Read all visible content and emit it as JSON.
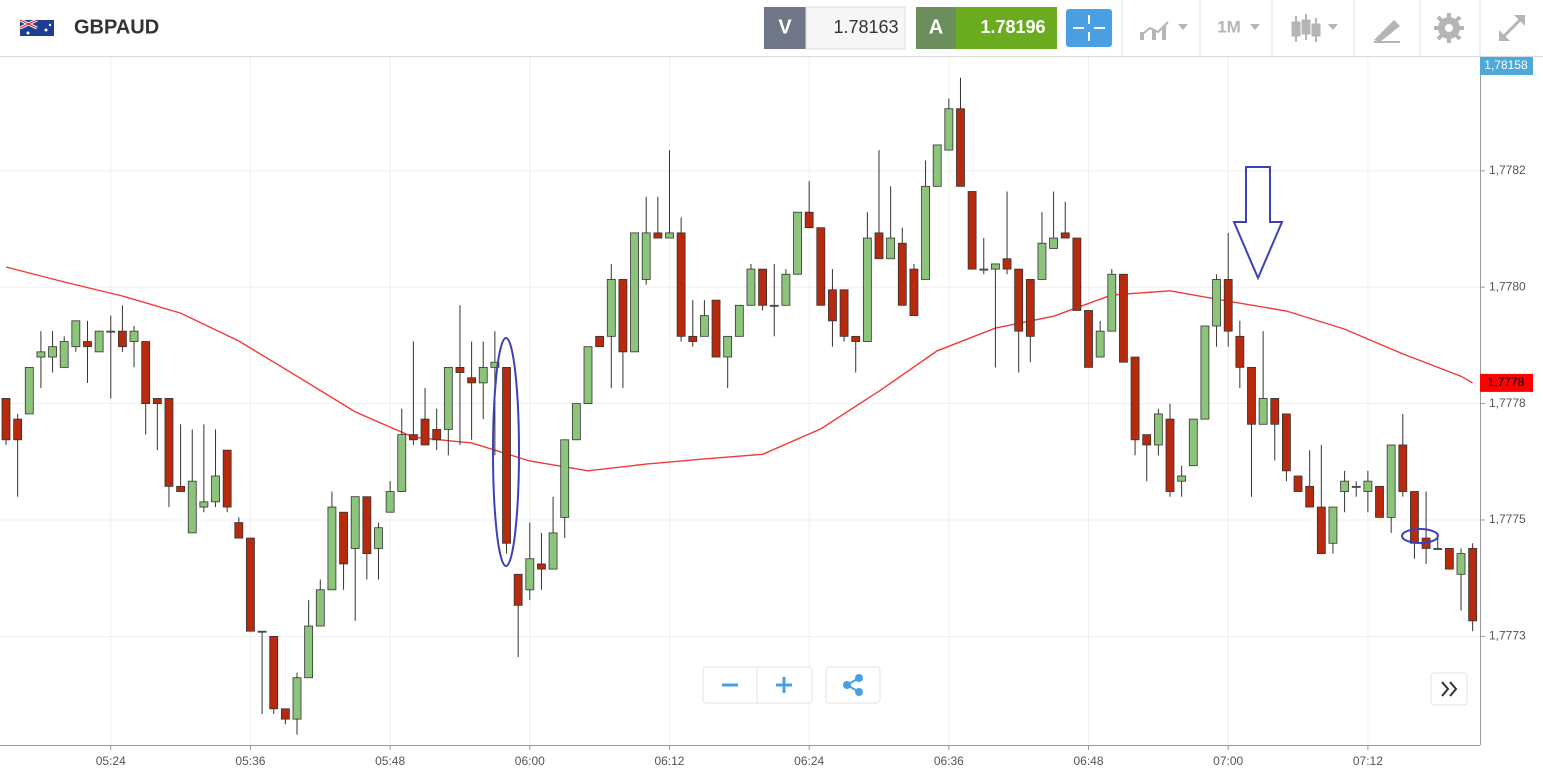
{
  "header": {
    "symbol": "GBPAUD",
    "sell_label": "V",
    "sell_price": "1.78163",
    "buy_label": "A",
    "buy_price": "1.78196",
    "timeframe": "1M"
  },
  "chart_data": {
    "type": "candlestick",
    "categories": [
      null,
      null,
      null,
      null,
      null,
      null,
      null,
      null,
      null,
      "05:24",
      null,
      null,
      null,
      null,
      null,
      null,
      null,
      null,
      null,
      null,
      null,
      "05:36",
      null,
      null,
      null,
      null,
      null,
      null,
      null,
      null,
      null,
      null,
      null,
      "05:48",
      null,
      null,
      null,
      null,
      null,
      null,
      null,
      null,
      null,
      null,
      null,
      "06:00",
      null,
      null,
      null,
      null,
      null,
      null,
      null,
      null,
      null,
      null,
      null,
      "06:12",
      null,
      null,
      null,
      null,
      null,
      null,
      null,
      null,
      null,
      null,
      null,
      "06:24",
      null,
      null,
      null,
      null,
      null,
      null,
      null,
      null,
      null,
      null,
      null,
      "06:36",
      null,
      null,
      null,
      null,
      null,
      null,
      null,
      null,
      null,
      null,
      null,
      "06:48",
      null,
      null,
      null,
      null,
      null,
      null,
      null,
      null,
      null,
      null,
      null,
      "07:00",
      null,
      null,
      null,
      null,
      null,
      null,
      null,
      null,
      null,
      null,
      null,
      "07:12",
      null,
      null,
      null,
      null,
      null,
      null,
      null,
      null,
      null
    ],
    "open": [
      1.77776,
      1.77772,
      1.77773,
      1.77784,
      1.77784,
      1.77782,
      1.77786,
      1.77787,
      1.77785,
      1.77789,
      1.77789,
      1.77787,
      1.77787,
      1.77776,
      1.77776,
      1.77759,
      1.7775,
      1.77755,
      1.77756,
      1.77766,
      1.77752,
      1.77749,
      1.77731,
      1.7773,
      1.77716,
      1.77714,
      1.77722,
      1.77732,
      1.77739,
      1.77754,
      1.77747,
      1.77757,
      1.77747,
      1.77754,
      1.77758,
      1.77769,
      1.77772,
      1.7777,
      1.7777,
      1.77782,
      1.7778,
      1.77779,
      1.77782,
      1.77782,
      1.77742,
      1.77739,
      1.77744,
      1.77743,
      1.77753,
      1.77768,
      1.77775,
      1.77788,
      1.77788,
      1.77799,
      1.77785,
      1.77799,
      1.77808,
      1.77807,
      1.77808,
      1.77788,
      1.77788,
      1.77795,
      1.77784,
      1.77788,
      1.77794,
      1.77801,
      1.77794,
      1.77794,
      1.778,
      1.77812,
      1.77809,
      1.77797,
      1.77797,
      1.77788,
      1.77787,
      1.77808,
      1.77803,
      1.77806,
      1.77801,
      1.77799,
      1.77817,
      1.77824,
      1.77832,
      1.77816,
      1.77801,
      1.77801,
      1.77803,
      1.77801,
      1.77799,
      1.77799,
      1.77805,
      1.77808,
      1.77807,
      1.77793,
      1.77784,
      1.77789,
      1.778,
      1.77784,
      1.77769,
      1.77767,
      1.77772,
      1.7776,
      1.77763,
      1.77772,
      1.7779,
      1.77799,
      1.77788,
      1.77782,
      1.77771,
      1.77776,
      1.77773,
      1.77761,
      1.77759,
      1.77755,
      1.77748,
      1.77758,
      1.77759,
      1.77758,
      1.77759,
      1.77753,
      1.77767,
      1.77758,
      1.77749,
      1.77747,
      1.77747,
      1.77742,
      1.77747
    ],
    "high": [
      1.77776,
      1.77773,
      1.77782,
      1.77789,
      1.77789,
      1.77788,
      1.77791,
      1.77791,
      1.77789,
      1.77792,
      1.77794,
      1.7779,
      1.77787,
      1.77776,
      1.77776,
      1.77771,
      1.7777,
      1.77771,
      1.7777,
      1.77766,
      1.77753,
      1.77749,
      1.77731,
      1.7773,
      1.77716,
      1.77723,
      1.77737,
      1.77741,
      1.77758,
      1.77754,
      1.77757,
      1.77757,
      1.77752,
      1.7776,
      1.77774,
      1.77787,
      1.77778,
      1.77774,
      1.77782,
      1.77794,
      1.77787,
      1.77787,
      1.77789,
      1.77782,
      1.77742,
      1.77752,
      1.7775,
      1.77757,
      1.77768,
      1.77775,
      1.77786,
      1.77788,
      1.77802,
      1.77799,
      1.77808,
      1.77815,
      1.77815,
      1.77824,
      1.77811,
      1.77795,
      1.77795,
      1.77795,
      1.77788,
      1.77794,
      1.77802,
      1.77801,
      1.77802,
      1.77801,
      1.77812,
      1.77818,
      1.77809,
      1.77801,
      1.77797,
      1.77788,
      1.77812,
      1.77824,
      1.77817,
      1.77809,
      1.77802,
      1.77822,
      1.77825,
      1.77834,
      1.77838,
      1.77816,
      1.77807,
      1.77802,
      1.77816,
      1.77801,
      1.77799,
      1.77812,
      1.77816,
      1.77814,
      1.77807,
      1.77793,
      1.77791,
      1.77801,
      1.778,
      1.77784,
      1.77769,
      1.77774,
      1.77775,
      1.77763,
      1.77772,
      1.7779,
      1.778,
      1.77808,
      1.77791,
      1.77782,
      1.77789,
      1.77776,
      1.77773,
      1.77761,
      1.77766,
      1.77767,
      1.77755,
      1.77762,
      1.7776,
      1.77762,
      1.77759,
      1.77767,
      1.77773,
      1.77758,
      1.77758,
      1.7775,
      1.77747,
      1.77747,
      1.77748
    ],
    "low": [
      1.77767,
      1.77757,
      1.77773,
      1.77778,
      1.77781,
      1.77782,
      1.77785,
      1.77779,
      1.77785,
      1.77776,
      1.77785,
      1.77782,
      1.77769,
      1.77766,
      1.77755,
      1.77758,
      1.7775,
      1.77754,
      1.77755,
      1.77754,
      1.77749,
      1.77731,
      1.77715,
      1.77715,
      1.77713,
      1.77711,
      1.77722,
      1.77732,
      1.77739,
      1.77739,
      1.77733,
      1.77741,
      1.77741,
      1.77754,
      1.77758,
      1.77767,
      1.77767,
      1.77766,
      1.77765,
      1.77767,
      1.77768,
      1.77772,
      1.77765,
      1.77746,
      1.77726,
      1.77737,
      1.77739,
      1.77743,
      1.77749,
      1.77768,
      1.77775,
      1.77786,
      1.77778,
      1.77778,
      1.77785,
      1.77798,
      1.77807,
      1.77807,
      1.77787,
      1.77786,
      1.77788,
      1.77784,
      1.77778,
      1.77788,
      1.77794,
      1.77793,
      1.77788,
      1.77794,
      1.778,
      1.77809,
      1.77794,
      1.77786,
      1.77787,
      1.77781,
      1.77787,
      1.77803,
      1.77803,
      1.77794,
      1.77792,
      1.77799,
      1.77817,
      1.77824,
      1.77817,
      1.77801,
      1.778,
      1.77782,
      1.778,
      1.77781,
      1.77783,
      1.77799,
      1.77805,
      1.77807,
      1.77793,
      1.77782,
      1.77784,
      1.77789,
      1.77783,
      1.77765,
      1.7776,
      1.77765,
      1.77757,
      1.77757,
      1.77763,
      1.77772,
      1.77786,
      1.77786,
      1.77778,
      1.77757,
      1.77771,
      1.77764,
      1.7776,
      1.77758,
      1.77755,
      1.77746,
      1.77746,
      1.77754,
      1.77757,
      1.77754,
      1.77753,
      1.7775,
      1.77757,
      1.77745,
      1.77744,
      1.77747,
      1.77743,
      1.77735,
      1.77731
    ],
    "close": [
      1.77768,
      1.77768,
      1.77782,
      1.77785,
      1.77786,
      1.77787,
      1.77791,
      1.77786,
      1.77789,
      1.77789,
      1.77786,
      1.77789,
      1.77775,
      1.77775,
      1.77759,
      1.77758,
      1.7776,
      1.77756,
      1.77761,
      1.77755,
      1.77749,
      1.77731,
      1.77731,
      1.77716,
      1.77714,
      1.77722,
      1.77732,
      1.77739,
      1.77755,
      1.77744,
      1.77757,
      1.77746,
      1.77751,
      1.77758,
      1.77769,
      1.77768,
      1.77767,
      1.77768,
      1.77782,
      1.77781,
      1.77779,
      1.77782,
      1.77783,
      1.77748,
      1.77736,
      1.77745,
      1.77743,
      1.7775,
      1.77768,
      1.77775,
      1.77786,
      1.77786,
      1.77799,
      1.77785,
      1.77808,
      1.77808,
      1.77807,
      1.77808,
      1.77788,
      1.77787,
      1.77792,
      1.77784,
      1.77788,
      1.77794,
      1.77801,
      1.77794,
      1.77794,
      1.778,
      1.77812,
      1.77809,
      1.77794,
      1.77791,
      1.77788,
      1.77787,
      1.77807,
      1.77803,
      1.77807,
      1.77794,
      1.77792,
      1.77817,
      1.77825,
      1.77832,
      1.77817,
      1.77801,
      1.77801,
      1.77802,
      1.77801,
      1.77789,
      1.77788,
      1.77806,
      1.77807,
      1.77807,
      1.77793,
      1.77782,
      1.77789,
      1.778,
      1.77783,
      1.77768,
      1.77767,
      1.77773,
      1.77758,
      1.77761,
      1.77772,
      1.7779,
      1.77799,
      1.77789,
      1.77782,
      1.77771,
      1.77776,
      1.77771,
      1.77762,
      1.77758,
      1.77755,
      1.77746,
      1.77755,
      1.7776,
      1.77759,
      1.7776,
      1.77753,
      1.77767,
      1.77758,
      1.77748,
      1.77747,
      1.77747,
      1.77743,
      1.77746,
      1.77733
    ],
    "up_color": "#8cc47b",
    "down_color": "#b82a0e",
    "ma": {
      "color": "#f03a3a",
      "x": [
        0,
        5,
        10,
        15,
        20,
        25,
        30,
        35,
        40,
        45,
        50,
        55,
        60,
        65,
        70,
        75,
        80,
        85,
        90,
        95,
        100,
        105,
        110,
        115,
        120,
        125,
        126
      ],
      "values": [
        1.778014,
        1.777985,
        1.777958,
        1.777925,
        1.777871,
        1.777803,
        1.777734,
        1.777685,
        1.777674,
        1.777639,
        1.77762,
        1.777633,
        1.777643,
        1.777652,
        1.777701,
        1.777774,
        1.777852,
        1.777896,
        1.777919,
        1.77796,
        1.777968,
        1.777948,
        1.777929,
        1.777894,
        1.777846,
        1.777803,
        1.77779
      ]
    },
    "ylim": [
      1.77709,
      1.77842
    ],
    "yticks": [
      {
        "value": 1.7773,
        "label": "1,7773"
      },
      {
        "value": 1.777525,
        "label": "1,7775"
      },
      {
        "value": 1.77775,
        "label": "1,7778"
      },
      {
        "value": 1.777975,
        "label": "1,7780"
      },
      {
        "value": 1.7782,
        "label": "1,7782"
      }
    ],
    "grid": true,
    "price_badges": [
      {
        "label": "1,78158",
        "color": "#4ea8d8"
      },
      {
        "label": "1,7778",
        "color": "#ff0000"
      }
    ]
  }
}
